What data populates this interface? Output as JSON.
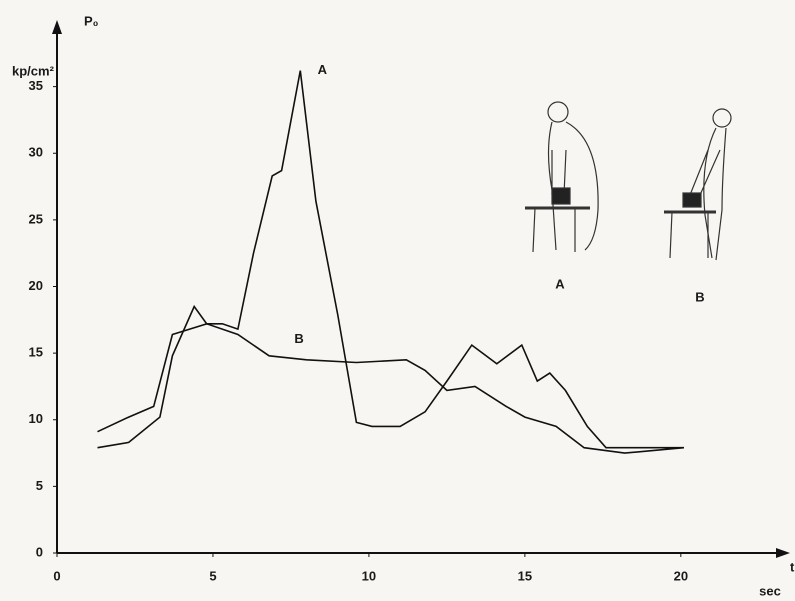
{
  "chart_data": {
    "type": "line",
    "y_label": "P₀",
    "y_unit": "kp/cm²",
    "x_label": "sec",
    "x_axis_name": "t",
    "xlim": [
      0,
      23.5
    ],
    "xticks": [
      0,
      5,
      10,
      15,
      20
    ],
    "ylim": [
      0,
      40
    ],
    "yticks": [
      0,
      5,
      10,
      15,
      20,
      25,
      30,
      35
    ],
    "series": [
      {
        "name": "A",
        "color": "#111111",
        "x": [
          1.3,
          2.3,
          3.3,
          3.7,
          4.4,
          4.8,
          5.3,
          5.8,
          6.3,
          6.9,
          7.2,
          7.8,
          8.3,
          9.0,
          9.6,
          10.1,
          11.0,
          11.8,
          12.5,
          13.3,
          14.1,
          14.9,
          15.4,
          15.8,
          16.3,
          17.0,
          17.6,
          18.9,
          20.1
        ],
        "values": [
          7.9,
          8.3,
          10.2,
          14.8,
          18.5,
          17.2,
          17.2,
          16.8,
          22.5,
          28.3,
          28.7,
          36.2,
          26.4,
          17.9,
          9.8,
          9.5,
          9.5,
          10.6,
          12.9,
          15.6,
          14.2,
          15.6,
          12.9,
          13.5,
          12.2,
          9.5,
          7.9,
          7.9,
          7.9
        ]
      },
      {
        "name": "B",
        "color": "#111111",
        "x": [
          1.3,
          2.3,
          3.1,
          3.7,
          4.8,
          5.8,
          6.8,
          8.0,
          9.6,
          11.2,
          11.8,
          12.5,
          13.4,
          14.4,
          15.0,
          16.0,
          16.9,
          18.2,
          20.1
        ],
        "values": [
          9.1,
          10.2,
          11.0,
          16.4,
          17.2,
          16.4,
          14.8,
          14.5,
          14.3,
          14.5,
          13.7,
          12.2,
          12.5,
          11.0,
          10.2,
          9.5,
          7.9,
          7.5,
          7.9
        ]
      }
    ],
    "figure_labels": [
      "A",
      "B"
    ]
  }
}
